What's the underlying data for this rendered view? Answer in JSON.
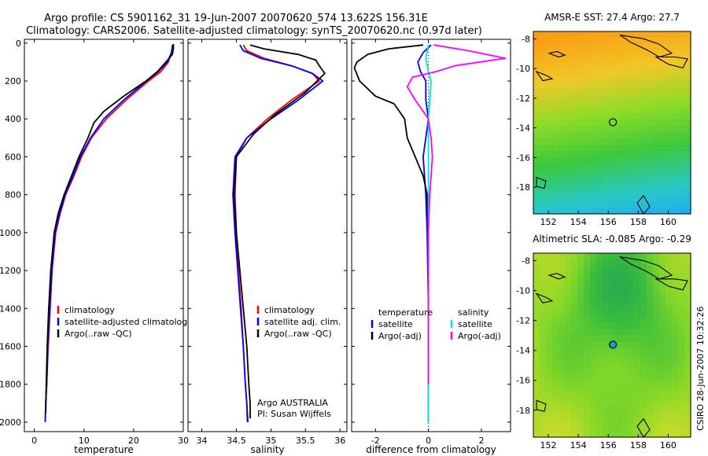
{
  "title_line1": "Argo profile: CS 5901162_31 19-Jun-2007 20070620_574 13.622S 156.31E",
  "title_line2": "Climatology: CARS2006. Satellite-adjusted climatology: synTS_20070620.nc (0.97d later)",
  "credit": "CSIRO 28-Jun-2007 10:32:26",
  "colors": {
    "climatology": "#ff0000",
    "satellite": "#0000ff",
    "argo": "#000000",
    "sat_salinity": "#00e0e0",
    "argo_salinity": "#ff00ff"
  },
  "chart_data": [
    {
      "type": "line",
      "xlabel": "temperature",
      "xlim": [
        -2,
        30
      ],
      "ylim": [
        2050,
        -20
      ],
      "xticks": [
        0,
        10,
        20,
        30
      ],
      "yticks": [
        0,
        200,
        400,
        600,
        800,
        1000,
        1200,
        1400,
        1600,
        1800,
        2000
      ],
      "legend": [
        "climatology",
        "satellite-adjusted climatology",
        "Argo(..raw -QC)"
      ],
      "series": [
        {
          "name": "climatology",
          "color": "#ff0000",
          "x": [
            27.8,
            27.6,
            27.0,
            25.5,
            23.0,
            18.5,
            14.5,
            11.5,
            9.5,
            8.0,
            6.3,
            5.2,
            4.3,
            3.6,
            3.2,
            2.8,
            2.5,
            2.3,
            2.2
          ],
          "y": [
            10,
            50,
            100,
            150,
            200,
            300,
            400,
            500,
            600,
            700,
            800,
            900,
            1000,
            1200,
            1400,
            1600,
            1800,
            1900,
            2000
          ]
        },
        {
          "name": "satellite-adjusted climatology",
          "color": "#0000ff",
          "x": [
            27.9,
            27.6,
            26.8,
            25.0,
            22.6,
            18.0,
            14.0,
            11.3,
            9.3,
            7.8,
            6.2,
            5.1,
            4.2,
            3.5,
            3.1,
            2.7,
            2.5,
            2.3,
            2.2
          ],
          "y": [
            10,
            50,
            100,
            150,
            200,
            300,
            400,
            500,
            600,
            700,
            800,
            900,
            1000,
            1200,
            1400,
            1600,
            1800,
            1900,
            2000
          ]
        },
        {
          "name": "Argo(..raw -QC)",
          "color": "#000000",
          "x": [
            28.0,
            28.0,
            27.8,
            26.5,
            24.8,
            22.5,
            18.0,
            14.0,
            12.0,
            10.8,
            9.0,
            7.5,
            6.0,
            4.8,
            4.0,
            3.3,
            2.9,
            2.6,
            2.4,
            2.3
          ],
          "y": [
            5,
            30,
            60,
            100,
            150,
            200,
            280,
            360,
            420,
            500,
            600,
            700,
            800,
            900,
            1000,
            1200,
            1400,
            1600,
            1800,
            1950
          ]
        }
      ]
    },
    {
      "type": "line",
      "xlabel": "salinity",
      "xlim": [
        33.8,
        36.1
      ],
      "ylim": [
        2050,
        -20
      ],
      "xticks": [
        34,
        34.5,
        35,
        35.5,
        36
      ],
      "legend": [
        "climatology",
        "satellite adj. clim.",
        "Argo(..raw -QC)"
      ],
      "annotations": [
        "Argo AUSTRALIA",
        "PI: Susan Wijffels"
      ],
      "series": [
        {
          "name": "climatology",
          "color": "#ff0000",
          "x": [
            34.6,
            34.65,
            34.9,
            35.3,
            35.6,
            35.7,
            35.3,
            34.95,
            34.65,
            34.5,
            34.48,
            34.5,
            34.53,
            34.57,
            34.6,
            34.63,
            34.65,
            34.67
          ],
          "y": [
            10,
            40,
            80,
            120,
            160,
            200,
            300,
            400,
            500,
            600,
            800,
            1000,
            1200,
            1400,
            1600,
            1800,
            1900,
            2000
          ]
        },
        {
          "name": "satellite adj. clim.",
          "color": "#0000ff",
          "x": [
            34.55,
            34.6,
            34.85,
            35.3,
            35.6,
            35.75,
            35.4,
            35.0,
            34.65,
            34.48,
            34.45,
            34.48,
            34.52,
            34.56,
            34.6,
            34.63,
            34.65,
            34.66
          ],
          "y": [
            10,
            40,
            80,
            120,
            160,
            200,
            300,
            400,
            500,
            600,
            800,
            1000,
            1200,
            1400,
            1600,
            1800,
            1900,
            2000
          ]
        },
        {
          "name": "Argo(..raw -QC)",
          "color": "#000000",
          "x": [
            34.7,
            34.9,
            35.4,
            35.65,
            35.7,
            35.78,
            35.5,
            35.05,
            34.75,
            34.5,
            34.47,
            34.5,
            34.55,
            34.6,
            34.65,
            34.68,
            34.7,
            34.7
          ],
          "y": [
            10,
            30,
            60,
            90,
            120,
            160,
            260,
            380,
            480,
            600,
            800,
            1000,
            1200,
            1400,
            1600,
            1800,
            1900,
            1980
          ]
        }
      ]
    },
    {
      "type": "line",
      "xlabel": "difference from climatology",
      "xlim": [
        -2.9,
        3.1
      ],
      "ylim": [
        2050,
        -20
      ],
      "xticks": [
        -2,
        0,
        2
      ],
      "legend": [
        "temperature",
        "satellite",
        "Argo(-adj)",
        "salinity",
        "satellite",
        "Argo(-adj)"
      ],
      "series": [
        {
          "name": "satellite",
          "color": "#0000ff",
          "x": [
            0.1,
            -0.2,
            -0.4,
            -0.3,
            -0.1,
            -0.1,
            0.0,
            -0.1,
            -0.2,
            -0.15,
            -0.1,
            -0.05,
            0.0,
            0.0,
            0.0
          ],
          "y": [
            10,
            50,
            100,
            150,
            200,
            300,
            400,
            500,
            600,
            700,
            800,
            1000,
            1400,
            1800,
            2000
          ]
        },
        {
          "name": "Argo(-adj)",
          "color": "#000000",
          "x": [
            -0.2,
            -1.5,
            -2.3,
            -2.7,
            -2.8,
            -2.6,
            -2.0,
            -1.3,
            -0.9,
            -0.8,
            -0.5,
            -0.2,
            -0.05,
            0.0,
            0.0,
            0.0
          ],
          "y": [
            10,
            30,
            60,
            100,
            130,
            200,
            280,
            320,
            400,
            500,
            600,
            700,
            800,
            1000,
            1400,
            1800
          ]
        },
        {
          "name": "satellite",
          "color": "#00e0e0",
          "x": [
            0.0,
            -0.1,
            0.0,
            0.1,
            0.05,
            0.0,
            0.0,
            0.0,
            0.0,
            0.0,
            0.0,
            0.0,
            0.0
          ],
          "y": [
            10,
            80,
            150,
            200,
            300,
            400,
            500,
            600,
            800,
            1000,
            1400,
            1800,
            2000
          ]
        },
        {
          "name": "Argo(-adj)",
          "color": "#ff00ff",
          "x": [
            0.2,
            1.5,
            2.9,
            1.0,
            0.3,
            -0.6,
            -0.8,
            -0.5,
            0.0,
            0.1,
            0.15,
            0.05,
            0.0,
            0.0,
            0.0
          ],
          "y": [
            10,
            40,
            80,
            120,
            150,
            180,
            230,
            300,
            400,
            500,
            600,
            800,
            1000,
            1400,
            1800
          ]
        }
      ]
    },
    {
      "type": "heatmap",
      "title": "AMSR-E SST: 27.4 Argo: 27.7",
      "xlim": [
        151,
        161.5
      ],
      "ylim": [
        -19.8,
        -7.5
      ],
      "xticks": [
        152,
        154,
        156,
        158,
        160
      ],
      "yticks": [
        -8,
        -10,
        -12,
        -14,
        -16,
        -18
      ],
      "marker": {
        "x": 156.31,
        "y": -13.62
      }
    },
    {
      "type": "heatmap",
      "title": "Altimetric SLA: -0.085 Argo: -0.29",
      "xlim": [
        151,
        161.5
      ],
      "ylim": [
        -19.8,
        -7.5
      ],
      "xticks": [
        152,
        154,
        156,
        158,
        160
      ],
      "yticks": [
        -8,
        -10,
        -12,
        -14,
        -16,
        -18
      ],
      "marker": {
        "x": 156.31,
        "y": -13.62
      }
    }
  ]
}
